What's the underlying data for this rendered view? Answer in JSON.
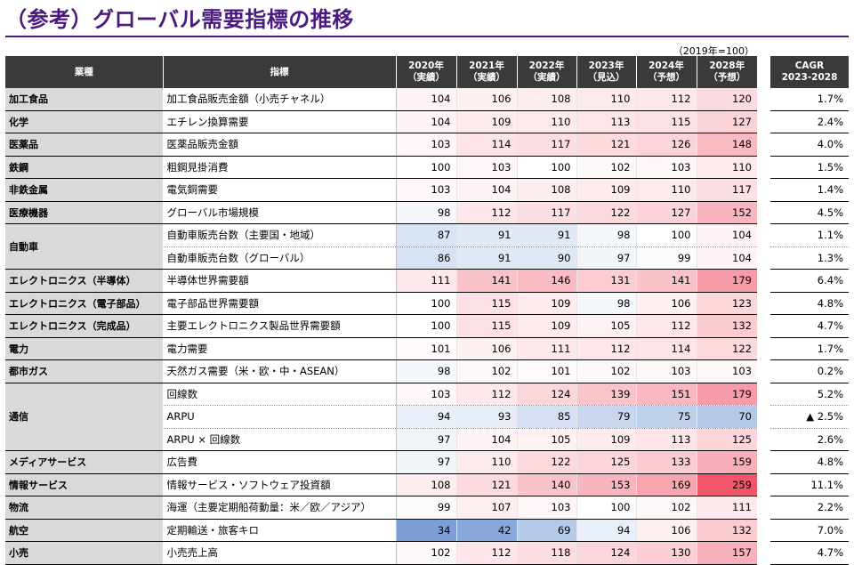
{
  "title": "（参考）グローバル需要指標の推移",
  "note": "（2019年=100）",
  "headers": {
    "industry": "業種",
    "indicator": "指標",
    "years": [
      "2020年\n（実績）",
      "2021年\n（実績）",
      "2022年\n（実績）",
      "2023年\n（見込）",
      "2024年\n（予想）",
      "2028年\n（予想）"
    ],
    "cagr": "CAGR\n2023-2028"
  },
  "colors": {
    "title": "#4b1a7d",
    "header_bg": "#3a3a3a",
    "industry_bg": "#d9d9d9",
    "low": "#7c9fd6",
    "high": "#f0566a"
  },
  "rows": [
    {
      "industry": "加工食品",
      "span": 1,
      "indicator": "加工食品販売金額（小売チャネル）",
      "values": [
        104,
        106,
        108,
        110,
        112,
        120
      ],
      "cagr": "1.7%"
    },
    {
      "industry": "化学",
      "span": 1,
      "indicator": "エチレン換算需要",
      "values": [
        104,
        109,
        110,
        113,
        115,
        127
      ],
      "cagr": "2.4%"
    },
    {
      "industry": "医薬品",
      "span": 1,
      "indicator": "医薬品販売金額",
      "values": [
        103,
        114,
        117,
        121,
        126,
        148
      ],
      "cagr": "4.0%"
    },
    {
      "industry": "鉄鋼",
      "span": 1,
      "indicator": "粗鋼見掛消費",
      "values": [
        100,
        103,
        100,
        102,
        103,
        110
      ],
      "cagr": "1.5%"
    },
    {
      "industry": "非鉄金属",
      "span": 1,
      "indicator": "電気銅需要",
      "values": [
        103,
        104,
        108,
        109,
        110,
        117
      ],
      "cagr": "1.4%"
    },
    {
      "industry": "医療機器",
      "span": 1,
      "indicator": "グローバル市場規模",
      "values": [
        98,
        112,
        117,
        122,
        127,
        152
      ],
      "cagr": "4.5%"
    },
    {
      "industry": "自動車",
      "span": 2,
      "indicator": "自動車販売台数（主要国・地域）",
      "values": [
        87,
        91,
        91,
        98,
        100,
        104
      ],
      "cagr": "1.1%"
    },
    {
      "industry": "",
      "span": 0,
      "indicator": "自動車販売台数（グローバル）",
      "values": [
        86,
        91,
        90,
        97,
        99,
        104
      ],
      "cagr": "1.3%"
    },
    {
      "industry": "エレクトロニクス（半導体）",
      "span": 1,
      "indicator": "半導体世界需要額",
      "values": [
        111,
        141,
        146,
        131,
        141,
        179
      ],
      "cagr": "6.4%"
    },
    {
      "industry": "エレクトロニクス（電子部品）",
      "span": 1,
      "indicator": "電子部品世界需要額",
      "values": [
        100,
        115,
        109,
        98,
        106,
        123
      ],
      "cagr": "4.8%"
    },
    {
      "industry": "エレクトロニクス（完成品）",
      "span": 1,
      "indicator": "主要エレクトロニクス製品世界需要額",
      "values": [
        100,
        115,
        109,
        105,
        112,
        132
      ],
      "cagr": "4.7%"
    },
    {
      "industry": "電力",
      "span": 1,
      "indicator": "電力需要",
      "values": [
        101,
        106,
        111,
        112,
        114,
        122
      ],
      "cagr": "1.7%"
    },
    {
      "industry": "都市ガス",
      "span": 1,
      "indicator": "天然ガス需要（米・欧・中・ASEAN）",
      "values": [
        98,
        102,
        101,
        102,
        103,
        103
      ],
      "cagr": "0.2%"
    },
    {
      "industry": "通信",
      "span": 3,
      "indicator": "回線数",
      "values": [
        103,
        112,
        124,
        139,
        151,
        179
      ],
      "cagr": "5.2%"
    },
    {
      "industry": "",
      "span": 0,
      "indicator": "ARPU",
      "values": [
        94,
        93,
        85,
        79,
        75,
        70
      ],
      "cagr": "▲ 2.5%"
    },
    {
      "industry": "",
      "span": 0,
      "indicator": "ARPU × 回線数",
      "values": [
        97,
        104,
        105,
        109,
        113,
        125
      ],
      "cagr": "2.6%"
    },
    {
      "industry": "メディアサービス",
      "span": 1,
      "indicator": "広告費",
      "values": [
        97,
        110,
        122,
        125,
        133,
        159
      ],
      "cagr": "4.8%"
    },
    {
      "industry": "情報サービス",
      "span": 1,
      "indicator": "情報サービス・ソフトウェア投資額",
      "values": [
        108,
        121,
        140,
        153,
        169,
        259
      ],
      "cagr": "11.1%"
    },
    {
      "industry": "物流",
      "span": 1,
      "indicator": "海運（主要定期船荷動量：米／欧／アジア）",
      "values": [
        99,
        107,
        103,
        100,
        102,
        111
      ],
      "cagr": "2.2%"
    },
    {
      "industry": "航空",
      "span": 1,
      "indicator": "定期輸送・旅客キロ",
      "values": [
        34,
        42,
        69,
        94,
        106,
        132
      ],
      "cagr": "7.0%"
    },
    {
      "industry": "小売",
      "span": 1,
      "indicator": "小売売上高",
      "values": [
        102,
        112,
        118,
        124,
        130,
        157
      ],
      "cagr": "4.7%"
    }
  ]
}
